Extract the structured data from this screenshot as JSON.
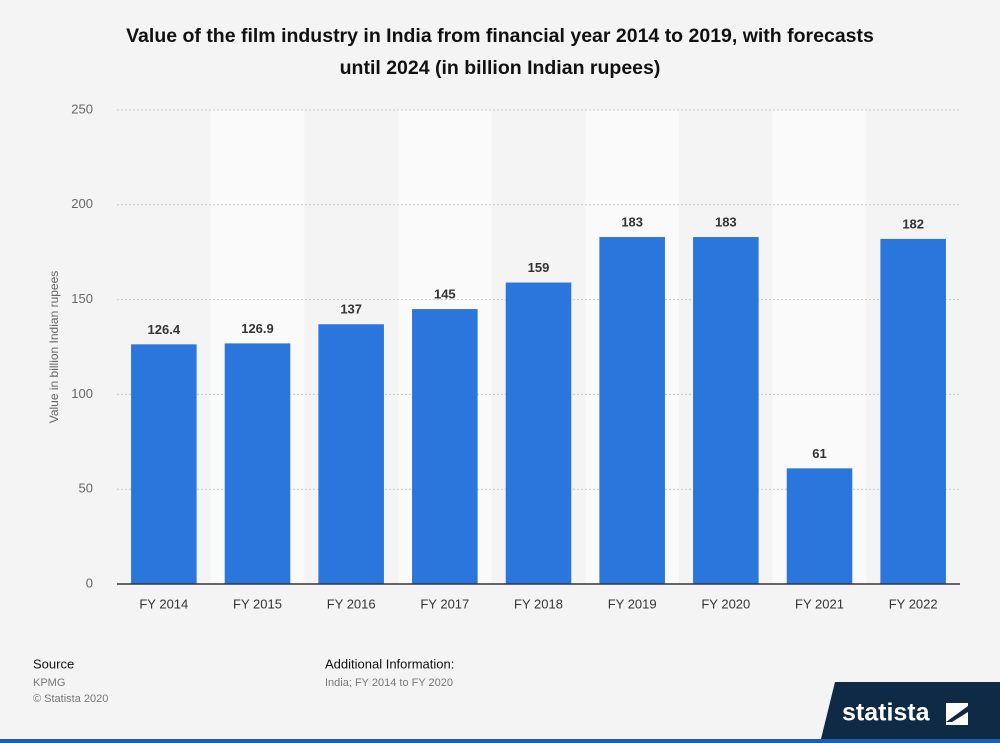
{
  "chart_data": {
    "type": "bar",
    "title": "Value of the film industry in India from financial year 2014 to 2019, with forecasts until 2024 (in billion Indian rupees)",
    "y_label": "Value in billion Indian rupees",
    "categories": [
      "FY 2014",
      "FY 2015",
      "FY 2016",
      "FY 2017",
      "FY 2018",
      "FY 2019",
      "FY 2020",
      "FY 2021",
      "FY 2022"
    ],
    "values": [
      126.4,
      126.9,
      137,
      145,
      159,
      183,
      183,
      61,
      182
    ],
    "color": "#2a76dd",
    "ylim": [
      0,
      250
    ],
    "yticks": [
      0,
      50,
      100,
      150,
      200,
      250
    ],
    "grid": true
  },
  "footer": {
    "source_heading": "Source",
    "source": "KPMG",
    "copyright": "© Statista 2020",
    "info_heading": "Additional Information:",
    "info": "India; FY 2014 to FY 2020",
    "logo": "statista"
  }
}
